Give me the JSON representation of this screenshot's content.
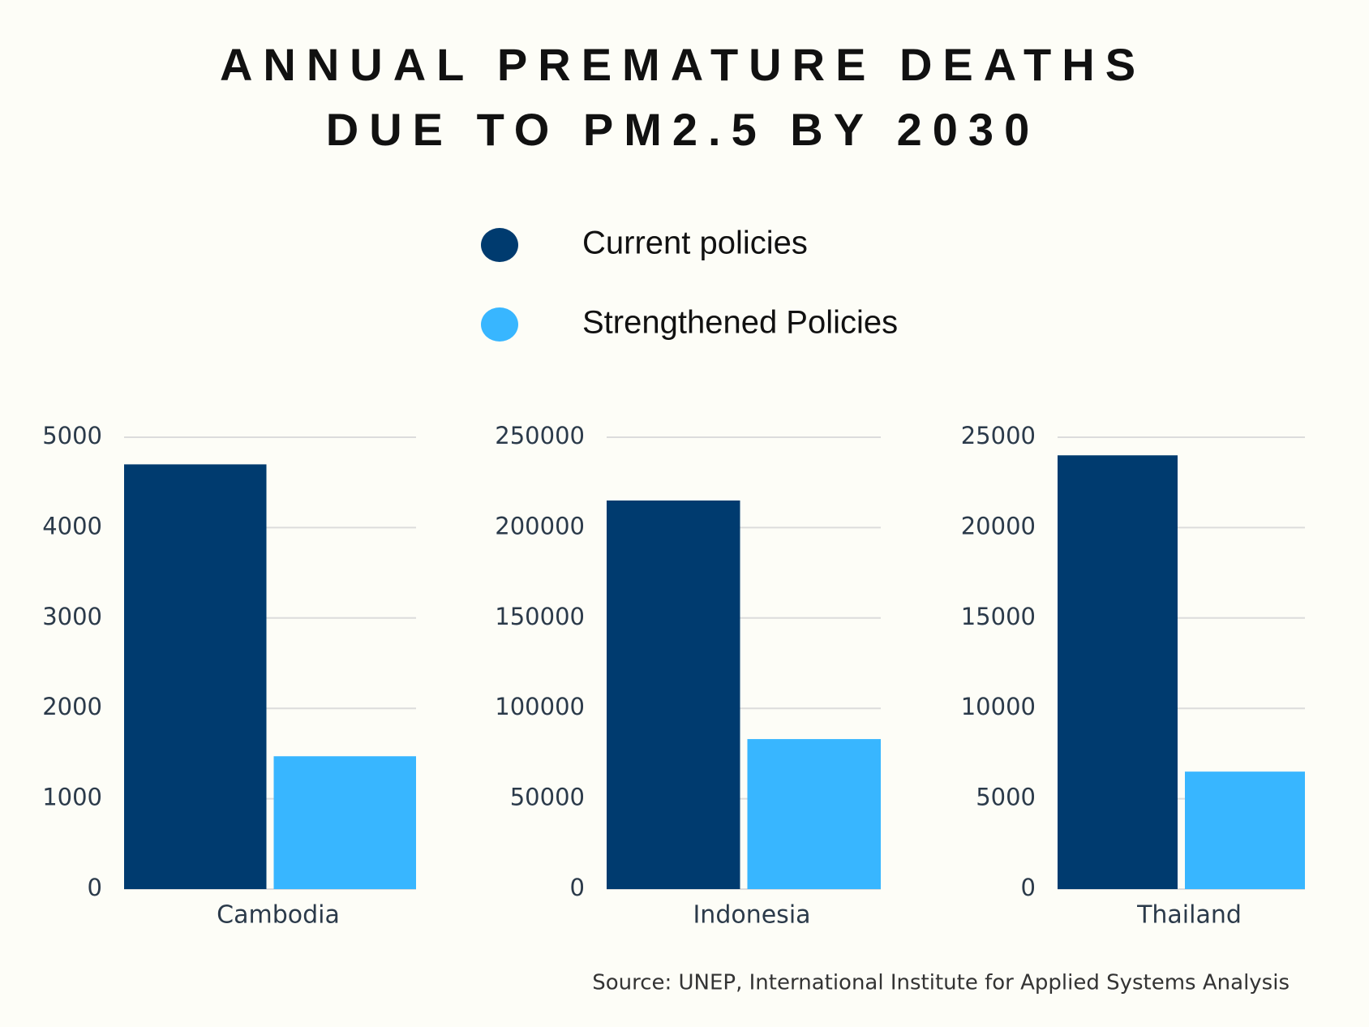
{
  "title": [
    "ANNUAL PREMATURE DEATHS",
    "DUE TO PM2.5 BY 2030"
  ],
  "source": "Source: UNEP, International Institute for Applied Systems Analysis",
  "chart_data": [
    {
      "type": "bar",
      "categories": [
        "Cambodia"
      ],
      "series": [
        {
          "name": "Current policies",
          "color": "#003b6f",
          "values": [
            4700
          ]
        },
        {
          "name": "Strengthened Policies",
          "color": "#38b6ff",
          "values": [
            1470
          ]
        }
      ],
      "ylim": [
        0,
        5000
      ],
      "yticks": [
        0,
        1000,
        2000,
        3000,
        4000,
        5000
      ],
      "grid": true
    },
    {
      "type": "bar",
      "categories": [
        "Indonesia"
      ],
      "series": [
        {
          "name": "Current policies",
          "color": "#003b6f",
          "values": [
            215000
          ]
        },
        {
          "name": "Strengthened Policies",
          "color": "#38b6ff",
          "values": [
            83000
          ]
        }
      ],
      "ylim": [
        0,
        250000
      ],
      "yticks": [
        0,
        50000,
        100000,
        150000,
        200000,
        250000
      ],
      "grid": true
    },
    {
      "type": "bar",
      "categories": [
        "Thailand"
      ],
      "series": [
        {
          "name": "Current policies",
          "color": "#003b6f",
          "values": [
            24000
          ]
        },
        {
          "name": "Strengthened Policies",
          "color": "#38b6ff",
          "values": [
            6500
          ]
        }
      ],
      "ylim": [
        0,
        25000
      ],
      "yticks": [
        0,
        5000,
        10000,
        15000,
        20000,
        25000
      ],
      "grid": true
    }
  ]
}
